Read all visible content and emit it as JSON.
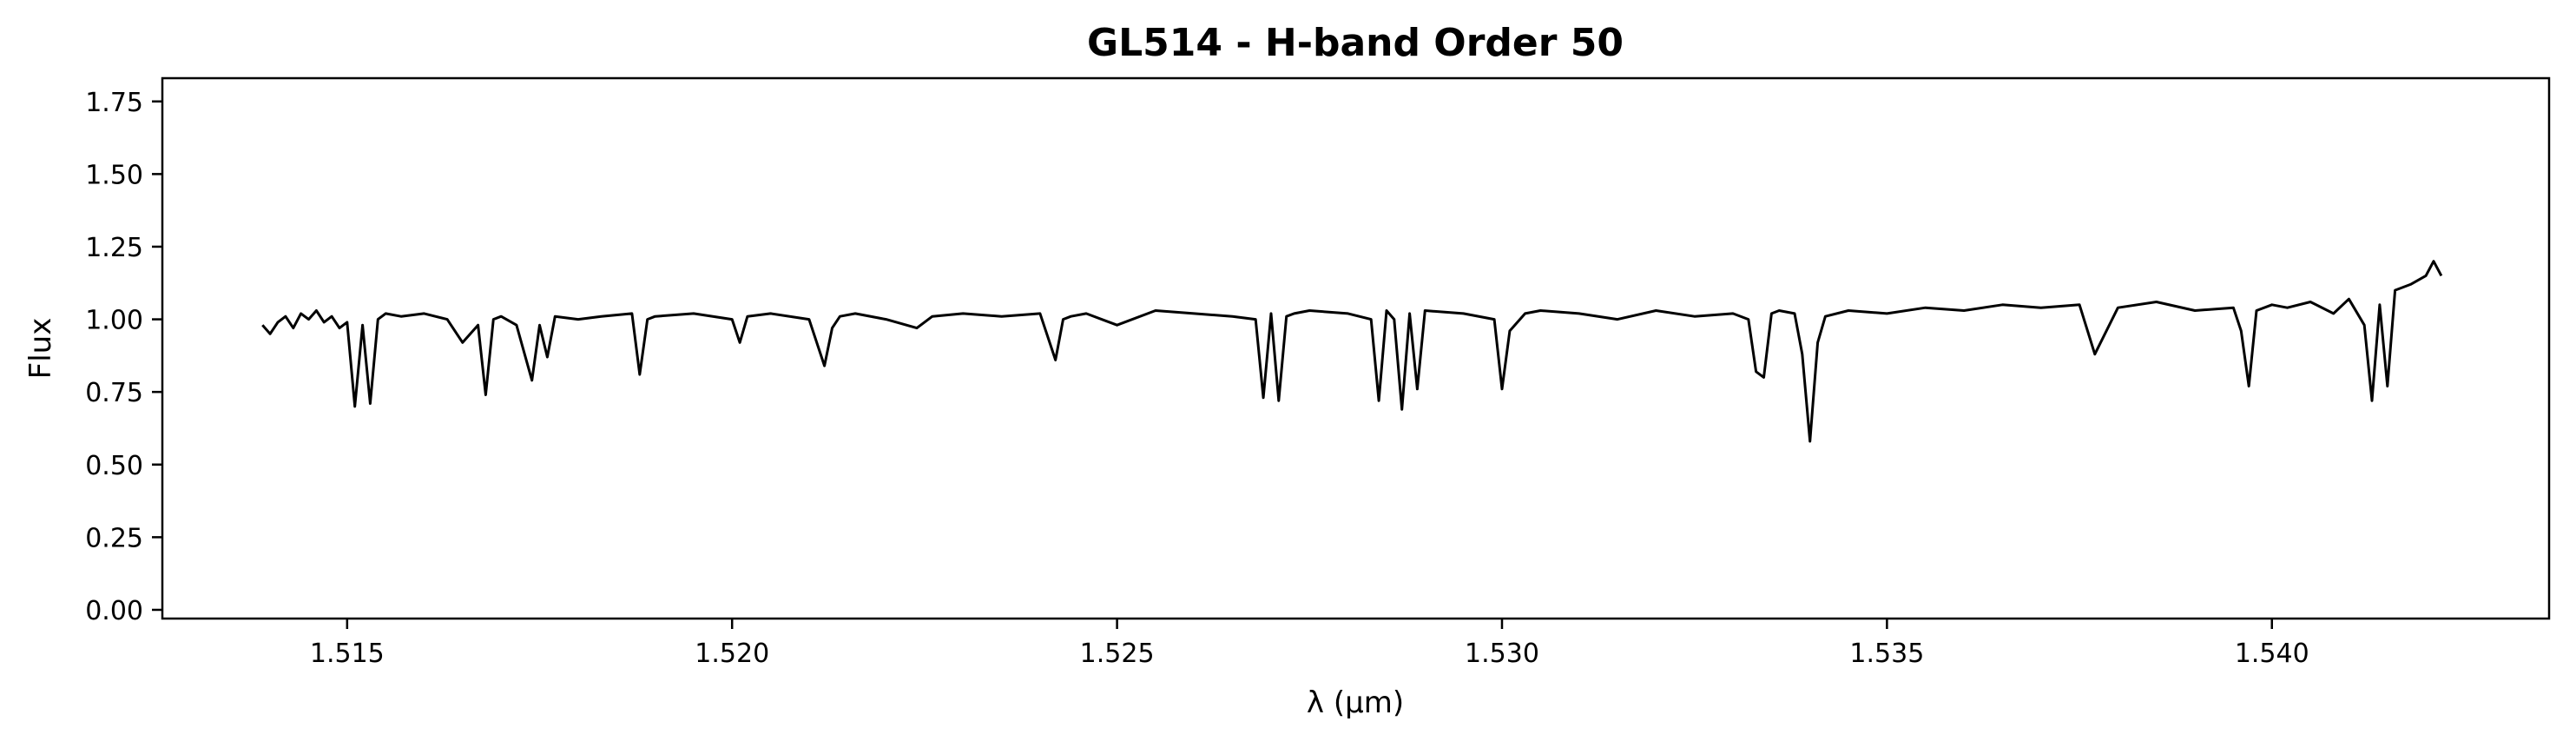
{
  "chart_data": {
    "type": "line",
    "title": "GL514 - H-band Order 50",
    "xlabel": "λ (μm)",
    "ylabel": "Flux",
    "xlim": [
      1.5126,
      1.5436
    ],
    "ylim": [
      -0.03,
      1.83
    ],
    "x_ticks": [
      1.515,
      1.52,
      1.525,
      1.53,
      1.535,
      1.54
    ],
    "x_tick_labels": [
      "1.515",
      "1.520",
      "1.525",
      "1.530",
      "1.535",
      "1.540"
    ],
    "y_ticks": [
      0.0,
      0.25,
      0.5,
      0.75,
      1.0,
      1.25,
      1.5,
      1.75
    ],
    "y_tick_labels": [
      "0.00",
      "0.25",
      "0.50",
      "0.75",
      "1.00",
      "1.25",
      "1.50",
      "1.75"
    ],
    "grid": false,
    "line_color": "#000000",
    "series": [
      {
        "x": [
          1.5139,
          1.514,
          1.5141,
          1.5142,
          1.5143,
          1.5144,
          1.5145,
          1.5146,
          1.5147,
          1.5148,
          1.5149,
          1.515,
          1.5151,
          1.5152,
          1.5153,
          1.5154,
          1.5155,
          1.5157,
          1.516,
          1.5163,
          1.5165,
          1.5167,
          1.5168,
          1.5169,
          1.517,
          1.5172,
          1.5174,
          1.5175,
          1.5176,
          1.5177,
          1.518,
          1.5183,
          1.5187,
          1.5188,
          1.5189,
          1.519,
          1.5195,
          1.52,
          1.5201,
          1.5202,
          1.5205,
          1.521,
          1.5212,
          1.5213,
          1.5214,
          1.5216,
          1.522,
          1.5224,
          1.5226,
          1.523,
          1.5235,
          1.524,
          1.5242,
          1.5243,
          1.5244,
          1.5246,
          1.525,
          1.5255,
          1.526,
          1.5265,
          1.5268,
          1.5269,
          1.527,
          1.5271,
          1.5272,
          1.5273,
          1.5275,
          1.528,
          1.5283,
          1.5284,
          1.5285,
          1.5286,
          1.5287,
          1.5288,
          1.5289,
          1.529,
          1.5295,
          1.5299,
          1.53,
          1.5301,
          1.5303,
          1.5305,
          1.531,
          1.5315,
          1.532,
          1.5325,
          1.533,
          1.5332,
          1.5333,
          1.5334,
          1.5335,
          1.5336,
          1.5338,
          1.5339,
          1.534,
          1.5341,
          1.5342,
          1.5345,
          1.535,
          1.5355,
          1.536,
          1.5365,
          1.537,
          1.5375,
          1.5377,
          1.538,
          1.5385,
          1.539,
          1.5395,
          1.5396,
          1.5397,
          1.5398,
          1.54,
          1.5402,
          1.5405,
          1.5408,
          1.541,
          1.5412,
          1.5413,
          1.5414,
          1.5415,
          1.5416,
          1.5418,
          1.542,
          1.5421,
          1.5422
        ],
        "y": [
          0.98,
          0.95,
          0.99,
          1.01,
          0.97,
          1.02,
          1.0,
          1.03,
          0.99,
          1.01,
          0.97,
          0.99,
          0.7,
          0.98,
          0.71,
          1.0,
          1.02,
          1.01,
          1.02,
          1.0,
          0.92,
          0.98,
          0.74,
          1.0,
          1.01,
          0.98,
          0.79,
          0.98,
          0.87,
          1.01,
          1.0,
          1.01,
          1.02,
          0.81,
          1.0,
          1.01,
          1.02,
          1.0,
          0.92,
          1.01,
          1.02,
          1.0,
          0.84,
          0.97,
          1.01,
          1.02,
          1.0,
          0.97,
          1.01,
          1.02,
          1.01,
          1.02,
          0.86,
          1.0,
          1.01,
          1.02,
          0.98,
          1.03,
          1.02,
          1.01,
          1.0,
          0.73,
          1.02,
          0.72,
          1.01,
          1.02,
          1.03,
          1.02,
          1.0,
          0.72,
          1.03,
          1.0,
          0.69,
          1.02,
          0.76,
          1.03,
          1.02,
          1.0,
          0.76,
          0.96,
          1.02,
          1.03,
          1.02,
          1.0,
          1.03,
          1.01,
          1.02,
          1.0,
          0.82,
          0.8,
          1.02,
          1.03,
          1.02,
          0.88,
          0.58,
          0.92,
          1.01,
          1.03,
          1.02,
          1.04,
          1.03,
          1.05,
          1.04,
          1.05,
          0.88,
          1.04,
          1.06,
          1.03,
          1.04,
          0.96,
          0.77,
          1.03,
          1.05,
          1.04,
          1.06,
          1.02,
          1.07,
          0.98,
          0.72,
          1.05,
          0.77,
          1.1,
          1.12,
          1.15,
          1.2,
          1.15
        ]
      }
    ]
  }
}
